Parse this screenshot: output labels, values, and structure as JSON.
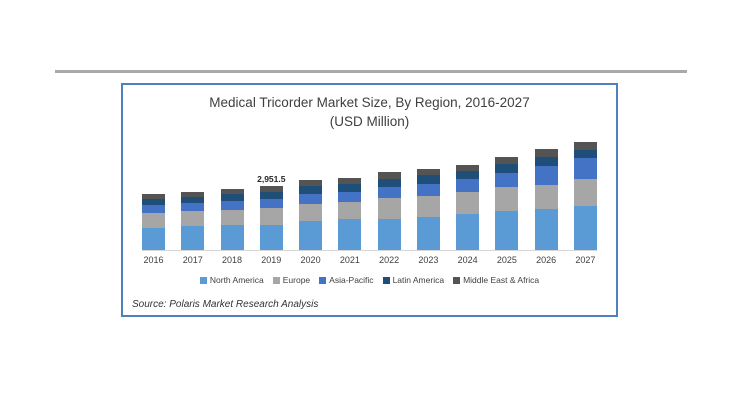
{
  "colors": {
    "frame_border": "#4e81bd",
    "top_rule": "#a9a9a9",
    "axis_line": "#d6d6d6",
    "title_text": "#3f3f3f",
    "label_text": "#404040"
  },
  "chart_data": {
    "type": "bar",
    "stacked": true,
    "title": "Medical Tricorder Market Size, By Region, 2016-2027",
    "subtitle": "(USD Million)",
    "unit": "USD Million",
    "source": "Source: Polaris Market Research Analysis",
    "legend_position": "bottom",
    "grid": false,
    "y_axis_visible": false,
    "ylim": [
      0,
      5250
    ],
    "categories": [
      "2016",
      "2017",
      "2018",
      "2019",
      "2020",
      "2021",
      "2022",
      "2023",
      "2024",
      "2025",
      "2026",
      "2027"
    ],
    "series": [
      {
        "name": "North America",
        "color": "#5b9bd5",
        "values": [
          1015,
          1105,
          1155,
          1175,
          1340,
          1430,
          1455,
          1520,
          1660,
          1800,
          1890,
          2030
        ]
      },
      {
        "name": "Europe",
        "color": "#a6a6a6",
        "values": [
          690,
          690,
          715,
          760,
          805,
          805,
          945,
          970,
          1040,
          1105,
          1105,
          1245
        ]
      },
      {
        "name": "Asia-Pacific",
        "color": "#4472c4",
        "values": [
          370,
          370,
          390,
          415,
          440,
          460,
          505,
          555,
          575,
          645,
          875,
          970
        ]
      },
      {
        "name": "Latin America",
        "color": "#1f4e79",
        "values": [
          275,
          300,
          325,
          346,
          370,
          370,
          390,
          415,
          390,
          415,
          415,
          390
        ]
      },
      {
        "name": "Middle East & Africa",
        "color": "#545454",
        "values": [
          230,
          230,
          255,
          255.5,
          275,
          275,
          300,
          300,
          275,
          325,
          370,
          370
        ]
      }
    ],
    "totals": [
      2580,
      2695,
      2840,
      2951.5,
      3230,
      3340,
      3595,
      3760,
      3940,
      4290,
      4655,
      5005
    ],
    "data_labels": [
      {
        "category": "2019",
        "value": 2951.5,
        "label": "2,951.5"
      }
    ]
  }
}
